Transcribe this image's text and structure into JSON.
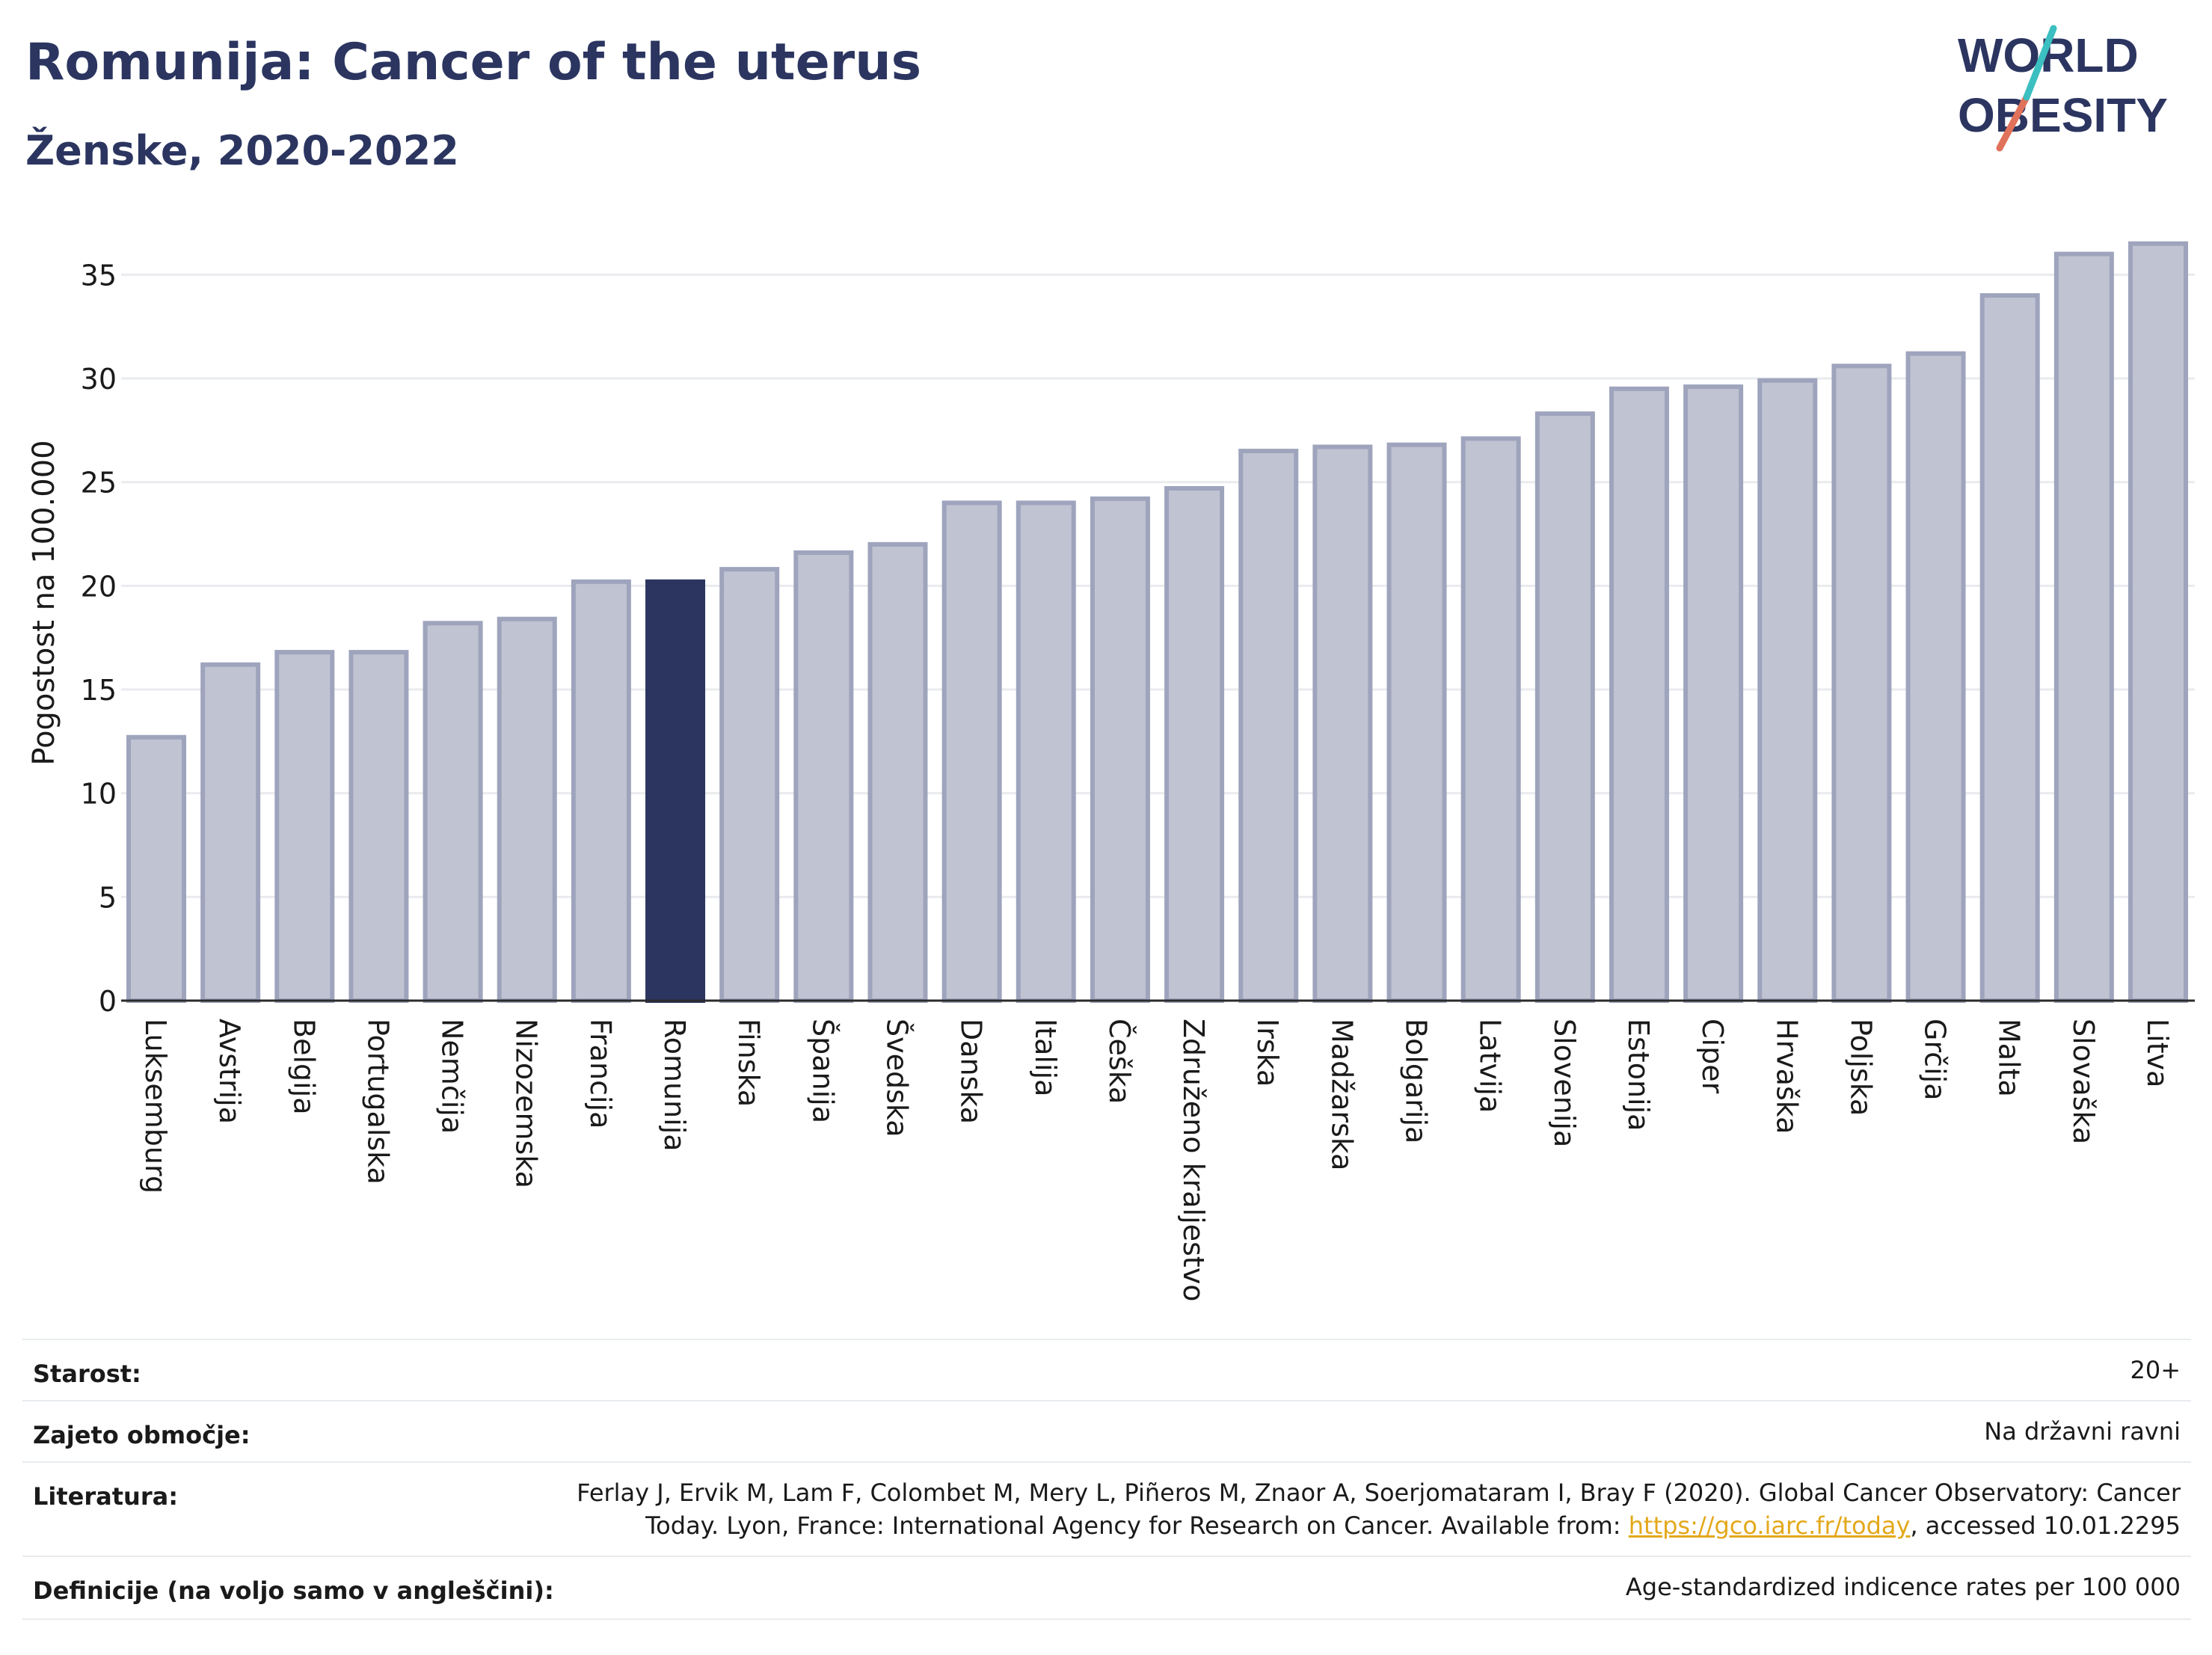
{
  "header": {
    "title": "Romunija: Cancer of the uterus",
    "subtitle": "Ženske, 2020-2022",
    "logo_text_top": "WORLD",
    "logo_text_bottom": "OBESITY"
  },
  "colors": {
    "bar_default": "#c0c3d2",
    "bar_default_border": "#9fa4bd",
    "bar_highlight": "#2b3560",
    "grid": "#e9ebee",
    "axis": "#2b2b2b",
    "text": "#2b3560",
    "link": "#e3a81b",
    "logo_teal": "#3bbfc0",
    "logo_coral": "#e0715a"
  },
  "chart_data": {
    "type": "bar",
    "title": "Romunija: Cancer of the uterus",
    "subtitle": "Ženske, 2020-2022",
    "xlabel": "",
    "ylabel": "Pogostost na 100.000",
    "ylim": [
      0,
      37.5
    ],
    "yticks": [
      0,
      5,
      10,
      15,
      20,
      25,
      30,
      35
    ],
    "grid": true,
    "highlight": "Romunija",
    "categories": [
      "Luksemburg",
      "Avstrija",
      "Belgija",
      "Portugalska",
      "Nemčija",
      "Nizozemska",
      "Francija",
      "Romunija",
      "Finska",
      "Španija",
      "Švedska",
      "Danska",
      "Italija",
      "Češka",
      "Združeno kraljestvo",
      "Irska",
      "Madžarska",
      "Bolgarija",
      "Latvija",
      "Slovenija",
      "Estonija",
      "Ciper",
      "Hrvaška",
      "Poljska",
      "Grčija",
      "Malta",
      "Slovaška",
      "Litva"
    ],
    "values": [
      12.7,
      16.2,
      16.8,
      16.8,
      18.2,
      18.4,
      20.2,
      20.2,
      20.8,
      21.6,
      22.0,
      24.0,
      24.0,
      24.2,
      24.7,
      26.5,
      26.7,
      26.8,
      27.1,
      28.3,
      29.5,
      29.6,
      29.9,
      30.6,
      31.2,
      34.0,
      36.0,
      36.5
    ]
  },
  "info": {
    "rows": [
      {
        "label": "Starost:",
        "value_lines": [
          "20+"
        ]
      },
      {
        "label": "Zajeto območje:",
        "value_lines": [
          "Na državni ravni"
        ]
      },
      {
        "label": "Literatura:",
        "value_lines": [
          "Ferlay J, Ervik M, Lam F, Colombet M, Mery L, Piñeros M, Znaor A, Soerjomataram I, Bray F (2020). Global Cancer Observatory: Cancer",
          "Today. Lyon, France: International Agency for Research on Cancer. Available from: "
        ],
        "link": "https://gco.iarc.fr/today",
        "after_link": ", accessed 10.01.2295"
      },
      {
        "label": "Definicije (na voljo samo v angleščini):",
        "value_lines": [
          "Age-standardized indicence rates per 100 000"
        ]
      }
    ]
  }
}
